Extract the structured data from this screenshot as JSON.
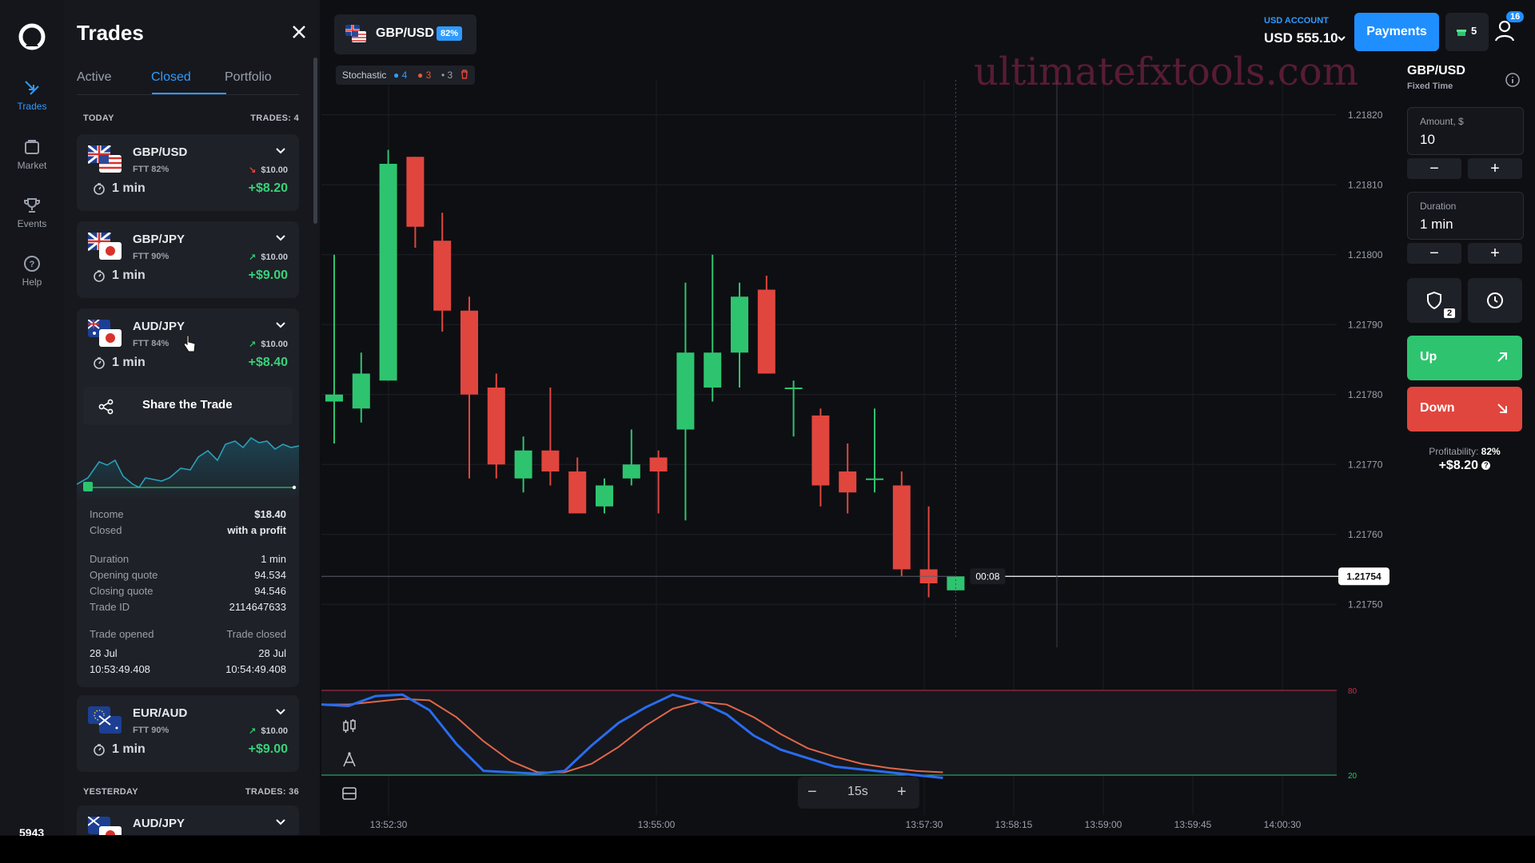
{
  "nav": {
    "items": [
      {
        "label": "Trades",
        "icon": "trades-icon"
      },
      {
        "label": "Market",
        "icon": "market-icon"
      },
      {
        "label": "Events",
        "icon": "trophy-icon"
      },
      {
        "label": "Help",
        "icon": "help-icon"
      }
    ],
    "bottom_number": "5943"
  },
  "panel": {
    "title": "Trades",
    "tabs": [
      "Active",
      "Closed",
      "Portfolio"
    ],
    "active_tab": "Closed",
    "today": {
      "label": "TODAY",
      "count": "TRADES: 4"
    },
    "yesterday": {
      "label": "YESTERDAY",
      "count": "TRADES: 36"
    },
    "trades": [
      {
        "pair": "GBP/USD",
        "ftt": "FTT 82%",
        "direction": "down",
        "stake": "$10.00",
        "duration": "1 min",
        "profit": "+$8.20"
      },
      {
        "pair": "GBP/JPY",
        "ftt": "FTT 90%",
        "direction": "up",
        "stake": "$10.00",
        "duration": "1 min",
        "profit": "+$9.00"
      },
      {
        "pair": "AUD/JPY",
        "ftt": "FTT 84%",
        "direction": "up",
        "stake": "$10.00",
        "duration": "1 min",
        "profit": "+$8.40"
      },
      {
        "pair": "EUR/AUD",
        "ftt": "FTT 90%",
        "direction": "up",
        "stake": "$10.00",
        "duration": "1 min",
        "profit": "+$9.00"
      }
    ],
    "yesterday_first_pair": "AUD/JPY",
    "share_label": "Share the Trade",
    "details": {
      "income_label": "Income",
      "income": "$18.40",
      "closed_label": "Closed",
      "closed": "with a profit",
      "duration_label": "Duration",
      "duration": "1 min",
      "opening_label": "Opening quote",
      "opening": "94.534",
      "closing_label": "Closing quote",
      "closing": "94.546",
      "trade_id_label": "Trade ID",
      "trade_id": "2114647633",
      "opened_label": "Trade opened",
      "closed_at_label": "Trade closed",
      "opened_date": "28 Jul",
      "closed_date": "28 Jul",
      "opened_time": "10:53:49.408",
      "closed_time": "10:54:49.408"
    }
  },
  "chart_header": {
    "pair": "GBP/USD",
    "payout": "82%",
    "indicator": {
      "name": "Stochastic",
      "p1": "4",
      "p2": "3",
      "p3": "3"
    }
  },
  "chart": {
    "price_ticks": [
      "1.21820",
      "1.21810",
      "1.21800",
      "1.21790",
      "1.21780",
      "1.21770",
      "1.21760",
      "1.21750"
    ],
    "current_price": "1.21754",
    "countdown": "00:08",
    "time_ticks": [
      "13:52:30",
      "13:55:00",
      "13:57:30",
      "13:58:15",
      "13:59:00",
      "13:59:45",
      "14:00:30"
    ],
    "timeframe": "15s",
    "stoch_levels": [
      "80",
      "20"
    ],
    "watermark": "ultimatefxtools.com"
  },
  "account": {
    "label": "USD ACCOUNT",
    "balance": "USD 555.10",
    "payments_label": "Payments",
    "gift_count": "5",
    "notif_count": "16"
  },
  "trade_panel": {
    "pair": "GBP/USD",
    "type": "Fixed Time",
    "amount_label": "Amount, $",
    "amount": "10",
    "duration_label": "Duration",
    "duration": "1 min",
    "minus": "−",
    "plus": "+",
    "shield_badge": "2",
    "up_label": "Up",
    "down_label": "Down",
    "profitability_label": "Profitability:",
    "profitability": "82%",
    "profit_value": "+$8.20"
  },
  "chart_data": {
    "type": "candlestick",
    "candles": [
      {
        "o": 1.21779,
        "c": 1.2178,
        "h": 1.218,
        "l": 1.21773
      },
      {
        "o": 1.21778,
        "c": 1.21783,
        "h": 1.21786,
        "l": 1.21776
      },
      {
        "o": 1.21782,
        "c": 1.21813,
        "h": 1.21815,
        "l": 1.21782
      },
      {
        "o": 1.21814,
        "c": 1.21804,
        "h": 1.21814,
        "l": 1.21801
      },
      {
        "o": 1.21802,
        "c": 1.21792,
        "h": 1.21806,
        "l": 1.21789
      },
      {
        "o": 1.21792,
        "c": 1.2178,
        "h": 1.21794,
        "l": 1.21768
      },
      {
        "o": 1.21781,
        "c": 1.2177,
        "h": 1.21783,
        "l": 1.21768
      },
      {
        "o": 1.21768,
        "c": 1.21772,
        "h": 1.21774,
        "l": 1.21766
      },
      {
        "o": 1.21772,
        "c": 1.21769,
        "h": 1.21781,
        "l": 1.21767
      },
      {
        "o": 1.21769,
        "c": 1.21763,
        "h": 1.21771,
        "l": 1.21763
      },
      {
        "o": 1.21764,
        "c": 1.21767,
        "h": 1.21768,
        "l": 1.21763
      },
      {
        "o": 1.21768,
        "c": 1.2177,
        "h": 1.21775,
        "l": 1.21767
      },
      {
        "o": 1.21771,
        "c": 1.21769,
        "h": 1.21772,
        "l": 1.21763
      },
      {
        "o": 1.21775,
        "c": 1.21786,
        "h": 1.21796,
        "l": 1.21762
      },
      {
        "o": 1.21781,
        "c": 1.21786,
        "h": 1.218,
        "l": 1.21779
      },
      {
        "o": 1.21786,
        "c": 1.21794,
        "h": 1.21796,
        "l": 1.21781
      },
      {
        "o": 1.21795,
        "c": 1.21783,
        "h": 1.21797,
        "l": 1.21783
      },
      {
        "o": 1.21781,
        "c": 1.21781,
        "h": 1.21782,
        "l": 1.21774
      },
      {
        "o": 1.21777,
        "c": 1.21767,
        "h": 1.21778,
        "l": 1.21764
      },
      {
        "o": 1.21769,
        "c": 1.21766,
        "h": 1.21773,
        "l": 1.21763
      },
      {
        "o": 1.21768,
        "c": 1.21768,
        "h": 1.21778,
        "l": 1.21766
      },
      {
        "o": 1.21767,
        "c": 1.21755,
        "h": 1.21769,
        "l": 1.21754
      },
      {
        "o": 1.21755,
        "c": 1.21753,
        "h": 1.21764,
        "l": 1.21751
      },
      {
        "o": 1.21752,
        "c": 1.21754,
        "h": 1.21754,
        "l": 1.21752
      }
    ],
    "ylim": [
      1.21745,
      1.21825
    ],
    "stochastic_k": [
      70,
      69,
      76,
      77,
      66,
      42,
      23,
      22,
      21,
      23,
      41,
      57,
      68,
      77,
      72,
      63,
      48,
      38,
      32,
      26,
      24,
      22,
      20,
      18
    ],
    "stochastic_d": [
      70,
      70,
      72,
      74,
      73,
      61,
      44,
      30,
      22,
      22,
      28,
      40,
      55,
      67,
      72,
      70,
      61,
      49,
      39,
      33,
      28,
      25,
      23,
      22
    ],
    "stochastic_range": [
      0,
      100
    ],
    "levels": [
      80,
      20
    ]
  }
}
